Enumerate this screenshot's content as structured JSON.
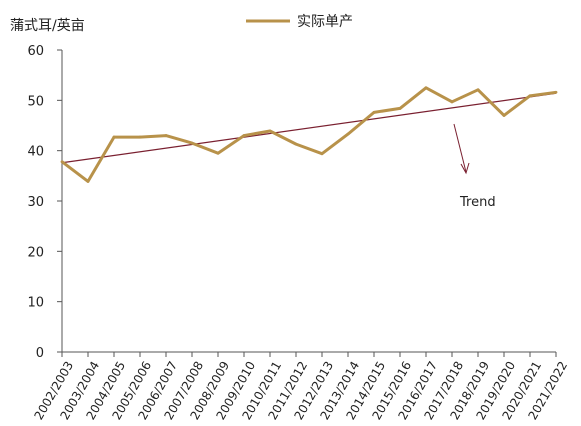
{
  "chart_data": {
    "type": "line",
    "unit_label": "蒲式耳/英亩",
    "legend_position": "top-center",
    "grid": false,
    "ylim": [
      0,
      60
    ],
    "yticks": [
      0,
      10,
      20,
      30,
      40,
      50,
      60
    ],
    "categories": [
      "2002/2003",
      "2003/2004",
      "2004/2005",
      "2005/2006",
      "2006/2007",
      "2007/2008",
      "2008/2009",
      "2009/2010",
      "2010/2011",
      "2011/2012",
      "2012/2013",
      "2013/2014",
      "2014/2015",
      "2015/2016",
      "2016/2017",
      "2017/2018",
      "2018/2019",
      "2019/2020",
      "2020/2021",
      "2021/2022"
    ],
    "series": [
      {
        "name": "实际单产",
        "color": "#b8924a",
        "values": [
          37.8,
          33.9,
          42.7,
          42.7,
          43.0,
          41.5,
          39.5,
          43.0,
          43.9,
          41.3,
          39.4,
          43.3,
          47.6,
          48.4,
          52.5,
          49.7,
          52.1,
          47.0,
          50.9,
          51.6
        ]
      }
    ],
    "trend": {
      "label": "Trend",
      "color": "#7a2030",
      "start": 37.6,
      "end": 51.4
    }
  }
}
